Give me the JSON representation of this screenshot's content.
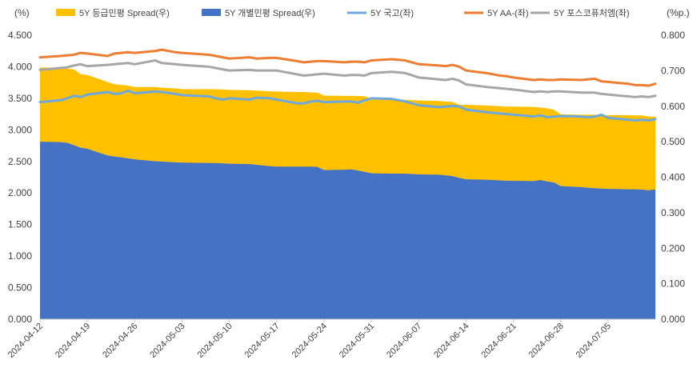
{
  "chart_data": {
    "type": "area",
    "left_axis_label": "(%)",
    "right_axis_label": "(%p.)",
    "ylim_left": [
      0,
      4.5
    ],
    "ylim_right": [
      0,
      0.8
    ],
    "left_ticks": [
      "0.000",
      "0.500",
      "1.000",
      "1.500",
      "2.000",
      "2.500",
      "3.000",
      "3.500",
      "4.000",
      "4.500"
    ],
    "right_ticks": [
      "0.000",
      "0.100",
      "0.200",
      "0.300",
      "0.400",
      "0.500",
      "0.600",
      "0.700",
      "0.800"
    ],
    "x_tick_labels": [
      "2024-04-12",
      "2024-04-19",
      "2024-04-26",
      "2024-05-03",
      "2024-05-10",
      "2024-05-17",
      "2024-05-24",
      "2024-05-31",
      "2024-06-07",
      "2024-06-14",
      "2024-06-21",
      "2024-06-28",
      "2024-07-05"
    ],
    "grid": false,
    "legend_position": "top",
    "x": [
      "2024-04-12",
      "2024-04-15",
      "2024-04-16",
      "2024-04-17",
      "2024-04-18",
      "2024-04-19",
      "2024-04-22",
      "2024-04-23",
      "2024-04-24",
      "2024-04-25",
      "2024-04-26",
      "2024-04-29",
      "2024-04-30",
      "2024-05-02",
      "2024-05-03",
      "2024-05-07",
      "2024-05-08",
      "2024-05-09",
      "2024-05-10",
      "2024-05-13",
      "2024-05-14",
      "2024-05-16",
      "2024-05-17",
      "2024-05-20",
      "2024-05-21",
      "2024-05-22",
      "2024-05-23",
      "2024-05-24",
      "2024-05-27",
      "2024-05-28",
      "2024-05-29",
      "2024-05-30",
      "2024-05-31",
      "2024-06-03",
      "2024-06-04",
      "2024-06-05",
      "2024-06-07",
      "2024-06-10",
      "2024-06-11",
      "2024-06-12",
      "2024-06-13",
      "2024-06-14",
      "2024-06-17",
      "2024-06-18",
      "2024-06-19",
      "2024-06-20",
      "2024-06-21",
      "2024-06-24",
      "2024-06-25",
      "2024-06-26",
      "2024-06-27",
      "2024-06-28",
      "2024-07-01",
      "2024-07-02",
      "2024-07-03",
      "2024-07-04",
      "2024-07-05",
      "2024-07-08",
      "2024-07-09",
      "2024-07-10",
      "2024-07-11",
      "2024-07-12"
    ],
    "series": [
      {
        "name": "5Y 등급민평 Spread(우)",
        "axis": "right",
        "kind": "area",
        "color": "#FFC000",
        "values": [
          0.709,
          0.708,
          0.706,
          0.704,
          0.69,
          0.688,
          0.668,
          0.662,
          0.66,
          0.658,
          0.654,
          0.654,
          0.652,
          0.65,
          0.648,
          0.648,
          0.648,
          0.647,
          0.646,
          0.645,
          0.644,
          0.642,
          0.641,
          0.64,
          0.64,
          0.639,
          0.638,
          0.63,
          0.629,
          0.629,
          0.629,
          0.628,
          0.622,
          0.62,
          0.619,
          0.618,
          0.616,
          0.615,
          0.613,
          0.612,
          0.604,
          0.604,
          0.602,
          0.601,
          0.6,
          0.599,
          0.599,
          0.598,
          0.596,
          0.594,
          0.59,
          0.577,
          0.576,
          0.576,
          0.576,
          0.575,
          0.575,
          0.575,
          0.574,
          0.574,
          0.571,
          0.57
        ]
      },
      {
        "name": "5Y 개별민평 Spread(우)",
        "axis": "right",
        "kind": "area",
        "color": "#4472C4",
        "values": [
          0.5,
          0.499,
          0.497,
          0.49,
          0.483,
          0.48,
          0.461,
          0.458,
          0.456,
          0.453,
          0.45,
          0.445,
          0.444,
          0.442,
          0.441,
          0.44,
          0.44,
          0.439,
          0.438,
          0.437,
          0.435,
          0.431,
          0.43,
          0.43,
          0.43,
          0.43,
          0.429,
          0.42,
          0.421,
          0.422,
          0.419,
          0.415,
          0.411,
          0.41,
          0.41,
          0.41,
          0.408,
          0.407,
          0.405,
          0.403,
          0.398,
          0.394,
          0.393,
          0.392,
          0.391,
          0.39,
          0.39,
          0.389,
          0.392,
          0.388,
          0.385,
          0.375,
          0.372,
          0.37,
          0.369,
          0.368,
          0.367,
          0.366,
          0.366,
          0.365,
          0.363,
          0.366
        ]
      },
      {
        "name": "5Y 국고(좌)",
        "axis": "left",
        "kind": "line",
        "color": "#6FA8DC",
        "values": [
          3.44,
          3.47,
          3.5,
          3.54,
          3.52,
          3.56,
          3.6,
          3.57,
          3.58,
          3.62,
          3.58,
          3.61,
          3.6,
          3.57,
          3.55,
          3.53,
          3.5,
          3.48,
          3.5,
          3.48,
          3.51,
          3.5,
          3.48,
          3.42,
          3.42,
          3.45,
          3.46,
          3.44,
          3.45,
          3.45,
          3.43,
          3.47,
          3.5,
          3.49,
          3.47,
          3.45,
          3.39,
          3.36,
          3.37,
          3.38,
          3.37,
          3.32,
          3.28,
          3.27,
          3.26,
          3.25,
          3.24,
          3.21,
          3.23,
          3.2,
          3.21,
          3.22,
          3.21,
          3.2,
          3.21,
          3.24,
          3.19,
          3.16,
          3.15,
          3.16,
          3.15,
          3.17
        ]
      },
      {
        "name": "5Y AA-(좌)",
        "axis": "left",
        "kind": "line",
        "color": "#ED7D31",
        "values": [
          4.15,
          4.17,
          4.18,
          4.19,
          4.22,
          4.21,
          4.17,
          4.21,
          4.22,
          4.23,
          4.22,
          4.25,
          4.27,
          4.23,
          4.22,
          4.19,
          4.17,
          4.15,
          4.13,
          4.15,
          4.13,
          4.14,
          4.14,
          4.09,
          4.07,
          4.08,
          4.09,
          4.09,
          4.07,
          4.08,
          4.08,
          4.07,
          4.1,
          4.12,
          4.11,
          4.1,
          4.04,
          4.02,
          4.01,
          4.03,
          4.0,
          3.94,
          3.9,
          3.88,
          3.86,
          3.85,
          3.83,
          3.79,
          3.8,
          3.79,
          3.79,
          3.8,
          3.79,
          3.8,
          3.81,
          3.77,
          3.76,
          3.73,
          3.71,
          3.71,
          3.7,
          3.73
        ]
      },
      {
        "name": "5Y 포스코퓨처엠(좌)",
        "axis": "left",
        "kind": "line",
        "color": "#A6A6A6",
        "values": [
          3.95,
          3.98,
          3.99,
          4.02,
          4.04,
          4.01,
          4.03,
          4.04,
          4.05,
          4.06,
          4.04,
          4.1,
          4.06,
          4.04,
          4.03,
          4.0,
          3.98,
          3.96,
          3.94,
          3.95,
          3.94,
          3.94,
          3.94,
          3.88,
          3.86,
          3.87,
          3.88,
          3.89,
          3.86,
          3.87,
          3.87,
          3.86,
          3.9,
          3.92,
          3.91,
          3.9,
          3.83,
          3.8,
          3.79,
          3.81,
          3.78,
          3.72,
          3.68,
          3.67,
          3.66,
          3.65,
          3.64,
          3.6,
          3.61,
          3.6,
          3.61,
          3.61,
          3.59,
          3.59,
          3.59,
          3.57,
          3.56,
          3.53,
          3.52,
          3.53,
          3.52,
          3.54
        ]
      }
    ]
  }
}
